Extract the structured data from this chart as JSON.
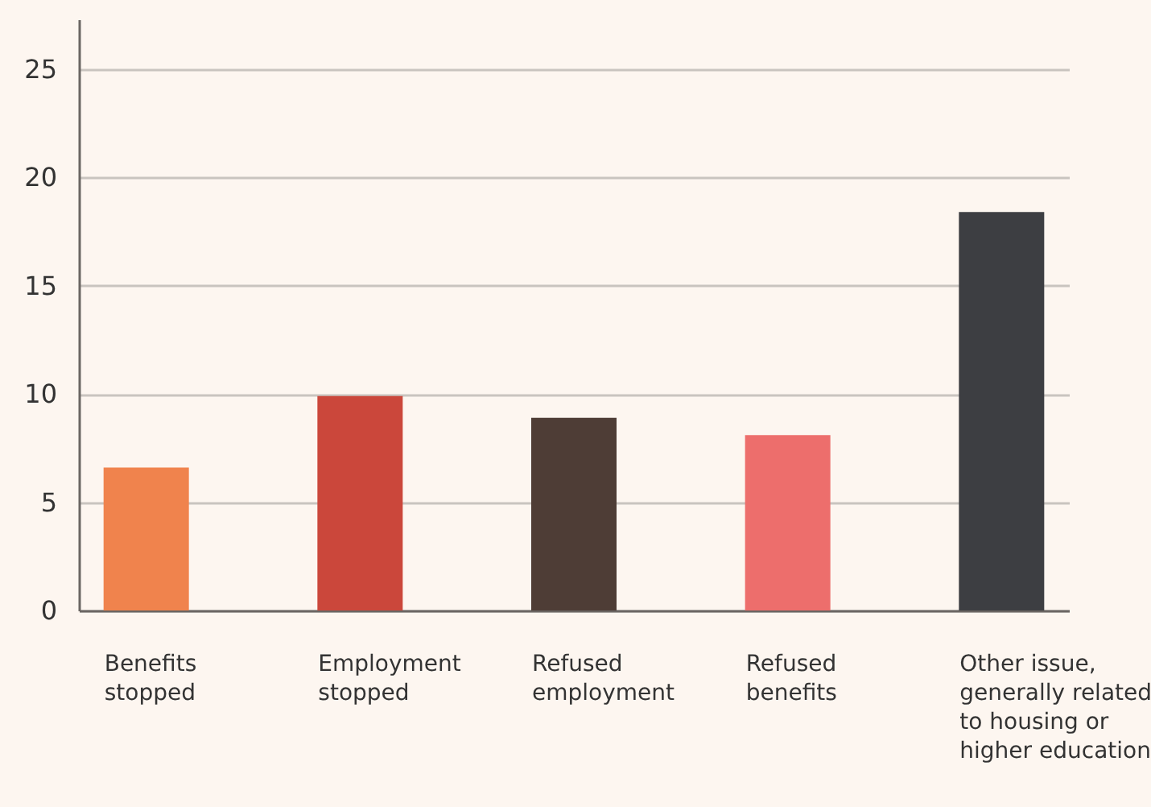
{
  "chart_data": {
    "type": "bar",
    "categories": [
      "Benefits\nstopped",
      "Employment\nstopped",
      "Refused\nemployment",
      "Refused\nbenefits",
      "Other issue,\ngenerally related\nto housing or\nhigher education"
    ],
    "values": [
      6.6,
      9.9,
      8.9,
      8.1,
      18.4
    ],
    "colors": [
      "#f0834d",
      "#cb473b",
      "#4e3d36",
      "#ed6e6c",
      "#3d3e42"
    ],
    "ylim": [
      0,
      27.3
    ],
    "yticks": [
      0,
      5,
      10,
      15,
      20,
      25
    ],
    "grid": "y"
  }
}
